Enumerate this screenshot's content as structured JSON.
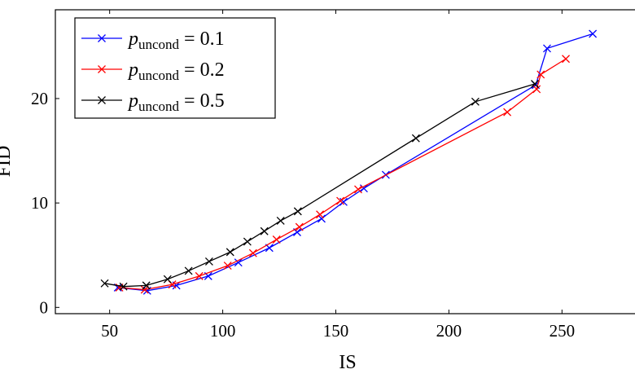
{
  "chart_data": {
    "type": "line",
    "x_label": "IS",
    "y_label": "FID",
    "xlim": [
      26,
      283
    ],
    "ylim": [
      -0.6,
      28.5
    ],
    "xticks": [
      50,
      100,
      150,
      200,
      250
    ],
    "yticks": [
      0,
      10,
      20
    ],
    "legend": "upper left",
    "series": [
      {
        "name": "puncond = 0.1",
        "color": "#0000ff",
        "x": [
          53.6,
          66.6,
          79.5,
          93.6,
          106.9,
          120.6,
          132.9,
          143.7,
          153.4,
          162.4,
          172.1,
          238.4,
          243.4,
          263.6
        ],
        "values": [
          1.9,
          1.6,
          2.1,
          3.0,
          4.3,
          5.7,
          7.2,
          8.5,
          10.1,
          11.4,
          12.7,
          21.3,
          24.8,
          26.2
        ]
      },
      {
        "name": "puncond = 0.2",
        "color": "#ff0000",
        "x": [
          54.3,
          65.5,
          77.7,
          89.6,
          102.2,
          113.4,
          123.8,
          133.9,
          143.0,
          152.0,
          159.9,
          225.8,
          238.8,
          240.6,
          251.7
        ],
        "values": [
          1.9,
          1.7,
          2.2,
          3.0,
          4.0,
          5.2,
          6.5,
          7.7,
          8.9,
          10.2,
          11.3,
          18.7,
          20.9,
          22.3,
          23.8
        ]
      },
      {
        "name": "puncond = 0.5",
        "color": "#000000",
        "x": [
          47.8,
          56.1,
          66.2,
          75.6,
          84.9,
          94.0,
          103.3,
          110.9,
          118.4,
          125.6,
          133.2,
          185.4,
          211.7,
          238.0
        ],
        "values": [
          2.3,
          2.0,
          2.1,
          2.7,
          3.5,
          4.4,
          5.3,
          6.3,
          7.3,
          8.3,
          9.2,
          16.2,
          19.7,
          21.4
        ]
      }
    ]
  }
}
